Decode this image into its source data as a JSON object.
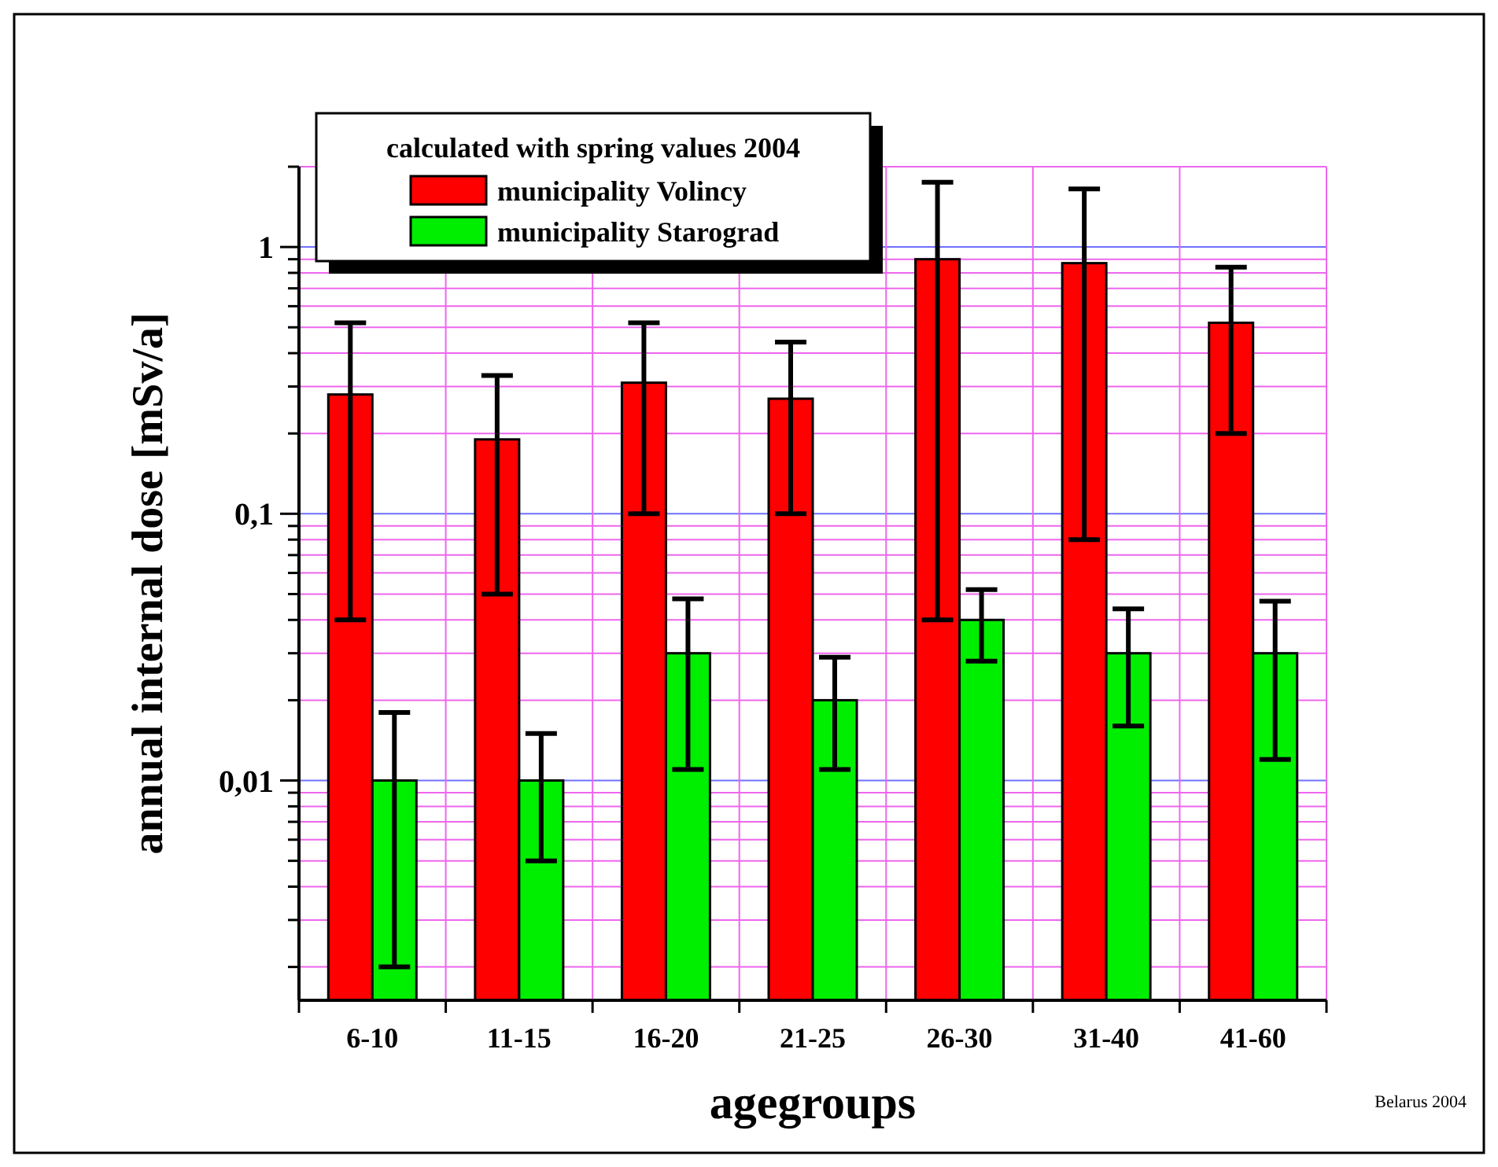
{
  "chart_data": {
    "type": "bar",
    "ylabel": "annual internal dose [mSv/a]",
    "xlabel": "agegroups",
    "legend_title": "calculated with spring values 2004",
    "legend": "top left",
    "log": true,
    "grid": true,
    "categories": [
      "6-10",
      "11-15",
      "16-20",
      "21-25",
      "26-30",
      "31-40",
      "41-60"
    ],
    "ylim": [
      0.0015,
      2
    ],
    "yticks": [
      {
        "value": 0.002,
        "label": null
      },
      {
        "value": 0.003,
        "label": null
      },
      {
        "value": 0.004,
        "label": null
      },
      {
        "value": 0.005,
        "label": null
      },
      {
        "value": 0.006,
        "label": null
      },
      {
        "value": 0.007,
        "label": null
      },
      {
        "value": 0.008,
        "label": null
      },
      {
        "value": 0.009,
        "label": null
      },
      {
        "value": 0.01,
        "label": "0,01"
      },
      {
        "value": 0.02,
        "label": null
      },
      {
        "value": 0.03,
        "label": null
      },
      {
        "value": 0.04,
        "label": null
      },
      {
        "value": 0.05,
        "label": null
      },
      {
        "value": 0.06,
        "label": null
      },
      {
        "value": 0.07,
        "label": null
      },
      {
        "value": 0.08,
        "label": null
      },
      {
        "value": 0.09,
        "label": null
      },
      {
        "value": 0.1,
        "label": "0,1"
      },
      {
        "value": 0.2,
        "label": null
      },
      {
        "value": 0.3,
        "label": null
      },
      {
        "value": 0.4,
        "label": null
      },
      {
        "value": 0.5,
        "label": null
      },
      {
        "value": 0.6,
        "label": null
      },
      {
        "value": 0.7,
        "label": null
      },
      {
        "value": 0.8,
        "label": null
      },
      {
        "value": 0.9,
        "label": null
      },
      {
        "value": 1,
        "label": "1"
      },
      {
        "value": 2,
        "label": null
      }
    ],
    "series": [
      {
        "name": "municipality Volincy",
        "color": "#ff0000",
        "values": [
          0.28,
          0.19,
          0.31,
          0.27,
          0.9,
          0.87,
          0.52
        ],
        "errors": [
          [
            0.04,
            0.52
          ],
          [
            0.05,
            0.33
          ],
          [
            0.1,
            0.52
          ],
          [
            0.1,
            0.44
          ],
          [
            0.04,
            1.75
          ],
          [
            0.08,
            1.65
          ],
          [
            0.2,
            0.84
          ]
        ]
      },
      {
        "name": "municipality Starograd",
        "color": "#00ee00",
        "values": [
          0.01,
          0.01,
          0.03,
          0.02,
          0.04,
          0.03,
          0.03
        ],
        "errors": [
          [
            0.002,
            0.018
          ],
          [
            0.005,
            0.015
          ],
          [
            0.011,
            0.048
          ],
          [
            0.011,
            0.029
          ],
          [
            0.028,
            0.052
          ],
          [
            0.016,
            0.044
          ],
          [
            0.012,
            0.047
          ]
        ]
      }
    ],
    "annotations": [
      "Belarus 2004"
    ]
  }
}
